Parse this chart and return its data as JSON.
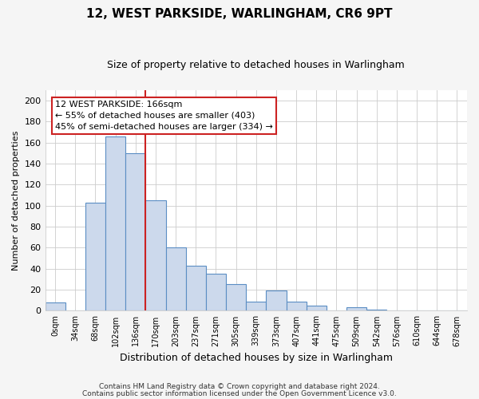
{
  "title": "12, WEST PARKSIDE, WARLINGHAM, CR6 9PT",
  "subtitle": "Size of property relative to detached houses in Warlingham",
  "xlabel": "Distribution of detached houses by size in Warlingham",
  "ylabel": "Number of detached properties",
  "bar_color": "#ccd9ec",
  "bar_edge_color": "#5b8ec4",
  "bin_labels": [
    "0sqm",
    "34sqm",
    "68sqm",
    "102sqm",
    "136sqm",
    "170sqm",
    "203sqm",
    "237sqm",
    "271sqm",
    "305sqm",
    "339sqm",
    "373sqm",
    "407sqm",
    "441sqm",
    "475sqm",
    "509sqm",
    "542sqm",
    "576sqm",
    "610sqm",
    "644sqm",
    "678sqm"
  ],
  "bar_heights": [
    8,
    0,
    103,
    166,
    150,
    105,
    60,
    43,
    35,
    25,
    9,
    19,
    9,
    5,
    0,
    3,
    1,
    0,
    0,
    0,
    0
  ],
  "ylim": [
    0,
    210
  ],
  "yticks": [
    0,
    20,
    40,
    60,
    80,
    100,
    120,
    140,
    160,
    180,
    200
  ],
  "vline_x": 5.0,
  "vline_color": "#cc2222",
  "annotation_box_text": "12 WEST PARKSIDE: 166sqm\n← 55% of detached houses are smaller (403)\n45% of semi-detached houses are larger (334) →",
  "annotation_box_color": "#ffffff",
  "annotation_box_edge_color": "#cc2222",
  "footer_line1": "Contains HM Land Registry data © Crown copyright and database right 2024.",
  "footer_line2": "Contains public sector information licensed under the Open Government Licence v3.0.",
  "figure_color": "#f5f5f5",
  "plot_bg_color": "#ffffff",
  "grid_color": "#cccccc"
}
